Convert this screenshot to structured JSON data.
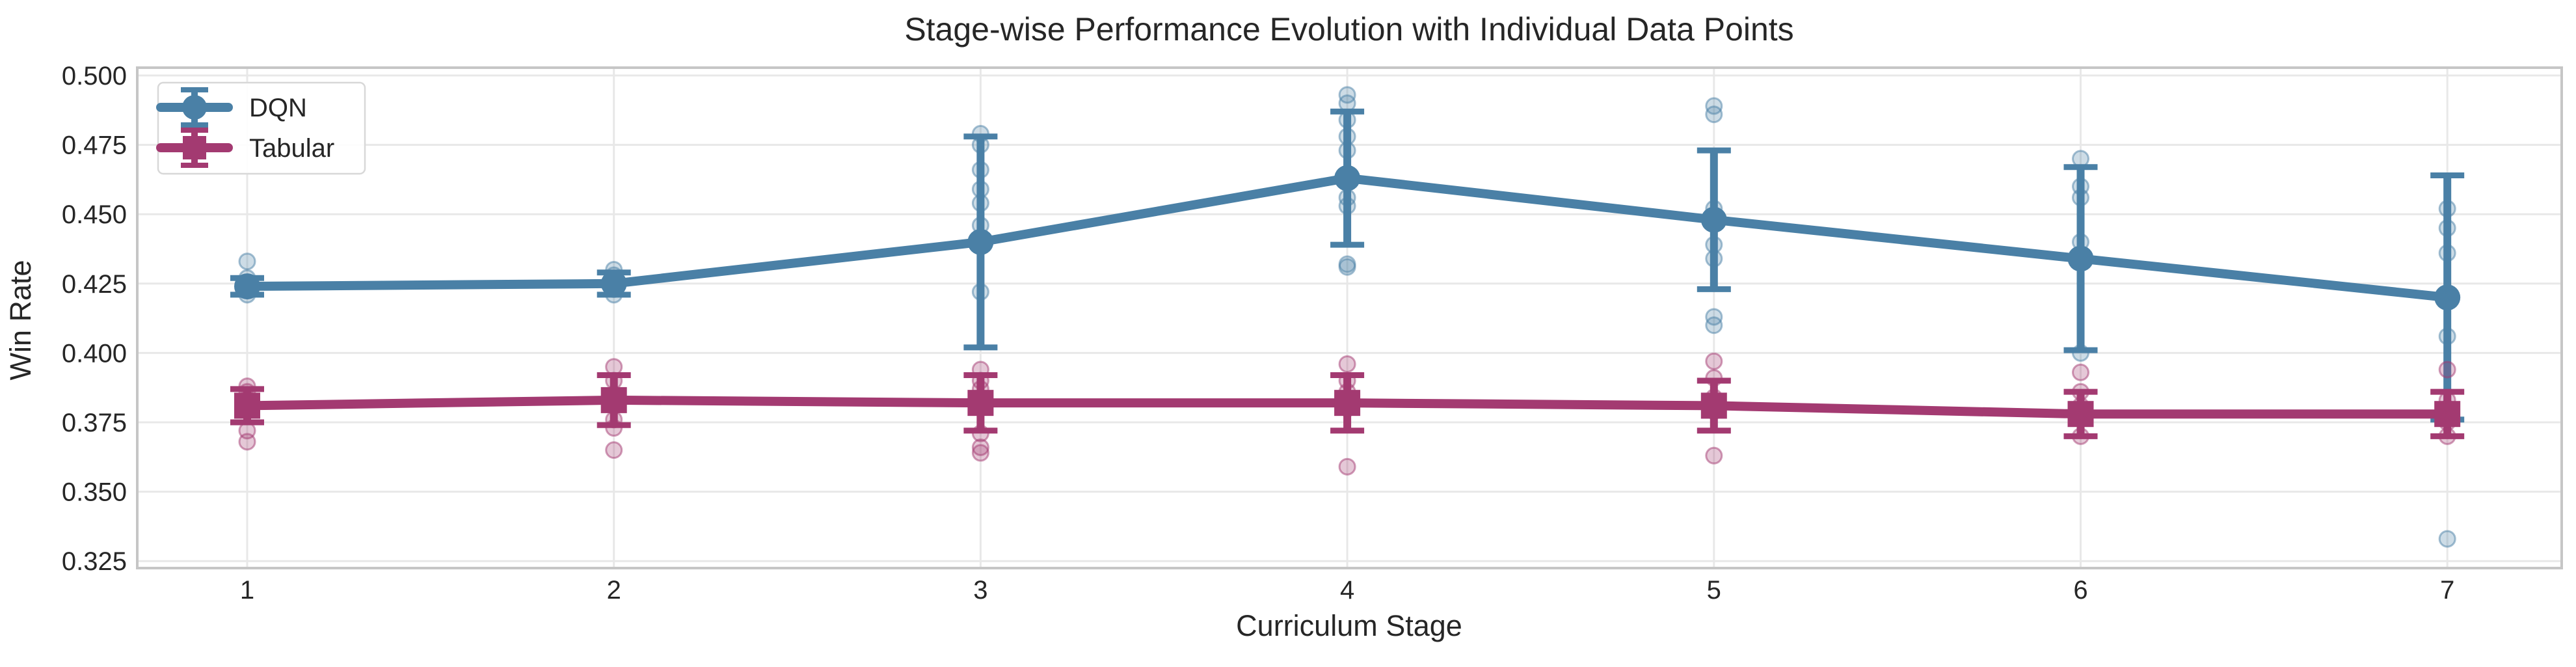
{
  "title": "Stage-wise Performance Evolution with Individual Data Points",
  "axes": {
    "xlabel": "Curriculum Stage",
    "ylabel": "Win Rate",
    "xtick_labels": [
      "1",
      "2",
      "3",
      "4",
      "5",
      "6",
      "7"
    ],
    "ytick_labels": [
      "0.500",
      "0.475",
      "0.450",
      "0.425",
      "0.400",
      "0.375",
      "0.350",
      "0.325"
    ]
  },
  "legend": {
    "position": "upper left",
    "entries": [
      "DQN",
      "Tabular"
    ]
  },
  "colors": {
    "dqn": "#4A80A6",
    "tabular": "#A33A71",
    "grid": "#E8E8E8",
    "spine": "#C6C6C6",
    "text": "#262626",
    "background": "#FFFFFF",
    "legend_frame": "#D8D8D8"
  },
  "chart_data": {
    "type": "line",
    "title": "Stage-wise Performance Evolution with Individual Data Points",
    "xlabel": "Curriculum Stage",
    "ylabel": "Win Rate",
    "x": [
      1,
      2,
      3,
      4,
      5,
      6,
      7
    ],
    "xticks": [
      1,
      2,
      3,
      4,
      5,
      6,
      7
    ],
    "yticks": [
      0.5,
      0.475,
      0.45,
      0.425,
      0.4,
      0.375,
      0.35,
      0.325
    ],
    "ylim": [
      0.3225,
      0.5028
    ],
    "grid": true,
    "legend_position": "upper left",
    "series": [
      {
        "name": "DQN",
        "color": "#4A80A6",
        "marker": "circle",
        "means": [
          0.424,
          0.425,
          0.44,
          0.463,
          0.448,
          0.434,
          0.42
        ],
        "errors": [
          0.003,
          0.004,
          0.038,
          0.024,
          0.025,
          0.033,
          0.044
        ],
        "scatter": [
          [
            0.433,
            0.427,
            0.425,
            0.424,
            0.423,
            0.421
          ],
          [
            0.43,
            0.428,
            0.426,
            0.425,
            0.424,
            0.423,
            0.421
          ],
          [
            0.479,
            0.475,
            0.466,
            0.459,
            0.454,
            0.446,
            0.441,
            0.439,
            0.422
          ],
          [
            0.493,
            0.49,
            0.484,
            0.478,
            0.473,
            0.463,
            0.456,
            0.453,
            0.432,
            0.431
          ],
          [
            0.489,
            0.486,
            0.452,
            0.448,
            0.439,
            0.434,
            0.413,
            0.41
          ],
          [
            0.47,
            0.46,
            0.456,
            0.44,
            0.434,
            0.4
          ],
          [
            0.452,
            0.445,
            0.436,
            0.421,
            0.406,
            0.333
          ]
        ]
      },
      {
        "name": "Tabular",
        "color": "#A33A71",
        "marker": "square",
        "means": [
          0.381,
          0.383,
          0.382,
          0.382,
          0.381,
          0.378,
          0.378
        ],
        "errors": [
          0.006,
          0.009,
          0.01,
          0.01,
          0.009,
          0.008,
          0.008
        ],
        "scatter": [
          [
            0.388,
            0.386,
            0.383,
            0.381,
            0.38,
            0.372,
            0.368
          ],
          [
            0.395,
            0.39,
            0.385,
            0.383,
            0.381,
            0.376,
            0.373,
            0.365
          ],
          [
            0.394,
            0.39,
            0.387,
            0.383,
            0.381,
            0.371,
            0.366,
            0.364
          ],
          [
            0.396,
            0.39,
            0.386,
            0.382,
            0.38,
            0.359
          ],
          [
            0.397,
            0.391,
            0.384,
            0.381,
            0.379,
            0.363
          ],
          [
            0.393,
            0.386,
            0.381,
            0.378,
            0.377,
            0.37
          ],
          [
            0.394,
            0.383,
            0.38,
            0.377,
            0.375,
            0.37
          ]
        ]
      }
    ]
  }
}
